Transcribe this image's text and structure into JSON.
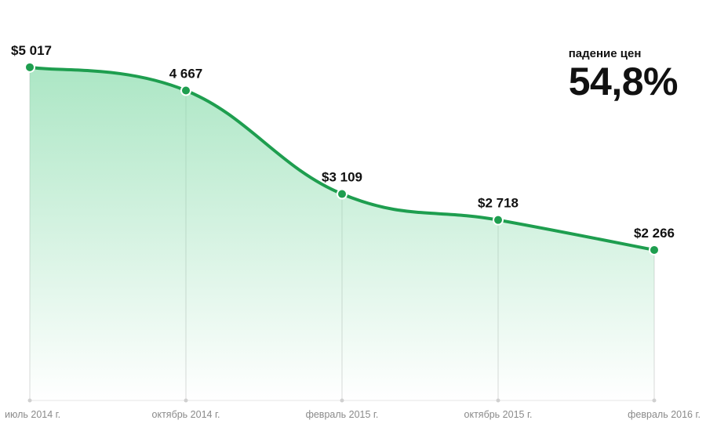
{
  "chart_data": {
    "type": "area",
    "categories": [
      "июль 2014 г.",
      "октябрь 2014 г.",
      "февраль 2015 г.",
      "октябрь 2015 г.",
      "февраль 2016 г."
    ],
    "values": [
      5017,
      4667,
      3109,
      2718,
      2266
    ],
    "value_labels": [
      "$5 017",
      "4 667",
      "$3 109",
      "$2 718",
      "$2 266"
    ],
    "ylim": [
      0,
      6030
    ],
    "grid": "vertical lines at each category",
    "line_color": "#1e9e4f",
    "fill_color": "#7fd9a5",
    "title": "",
    "xlabel": "",
    "ylabel": ""
  },
  "stat": {
    "caption": "падение цен",
    "value": "54,8%"
  }
}
